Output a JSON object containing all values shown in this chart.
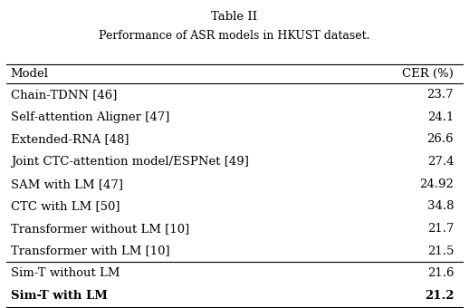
{
  "title_line1": "Table II",
  "title_line2": "Performance of ASR models in HKUST dataset.",
  "col_headers": [
    "Model",
    "CER (%)"
  ],
  "rows": [
    [
      "Chain-TDNN [46]",
      "23.7"
    ],
    [
      "Self-attention Aligner [47]",
      "24.1"
    ],
    [
      "Extended-RNA [48]",
      "26.6"
    ],
    [
      "Joint CTC-attention model/ESPNet [49]",
      "27.4"
    ],
    [
      "SAM with LM [47]",
      "24.92"
    ],
    [
      "CTC with LM [50]",
      "34.8"
    ],
    [
      "Transformer without LM [10]",
      "21.7"
    ],
    [
      "Transformer with LM [10]",
      "21.5"
    ]
  ],
  "rows_bold_section": [
    [
      "Sim-T without LM",
      "21.6",
      false
    ],
    [
      "Sim-T with LM",
      "21.2",
      true
    ]
  ],
  "bg_color": "#ffffff",
  "text_color": "#000000",
  "font_size": 9.5,
  "title_font_size": 9.5
}
